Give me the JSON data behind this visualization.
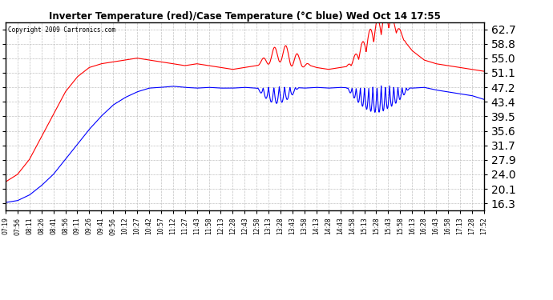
{
  "title": "Inverter Temperature (red)/Case Temperature (°C blue) Wed Oct 14 17:55",
  "copyright": "Copyright 2009 Cartronics.com",
  "y_ticks": [
    16.3,
    20.1,
    24.0,
    27.9,
    31.7,
    35.6,
    39.5,
    43.4,
    47.2,
    51.1,
    55.0,
    58.8,
    62.7
  ],
  "ylim": [
    14.5,
    64.5
  ],
  "background_color": "#ffffff",
  "grid_color": "#bbbbbb",
  "line_color_red": "#ff0000",
  "line_color_blue": "#0000ff",
  "x_labels": [
    "07:19",
    "07:56",
    "08:11",
    "08:26",
    "08:41",
    "08:56",
    "09:11",
    "09:26",
    "09:41",
    "09:56",
    "10:12",
    "10:27",
    "10:42",
    "10:57",
    "11:12",
    "11:27",
    "11:43",
    "11:58",
    "12:13",
    "12:28",
    "12:43",
    "12:58",
    "13:13",
    "13:28",
    "13:43",
    "13:58",
    "14:13",
    "14:28",
    "14:43",
    "14:58",
    "15:13",
    "15:28",
    "15:43",
    "15:58",
    "16:13",
    "16:28",
    "16:43",
    "16:58",
    "17:13",
    "17:28",
    "17:52"
  ]
}
